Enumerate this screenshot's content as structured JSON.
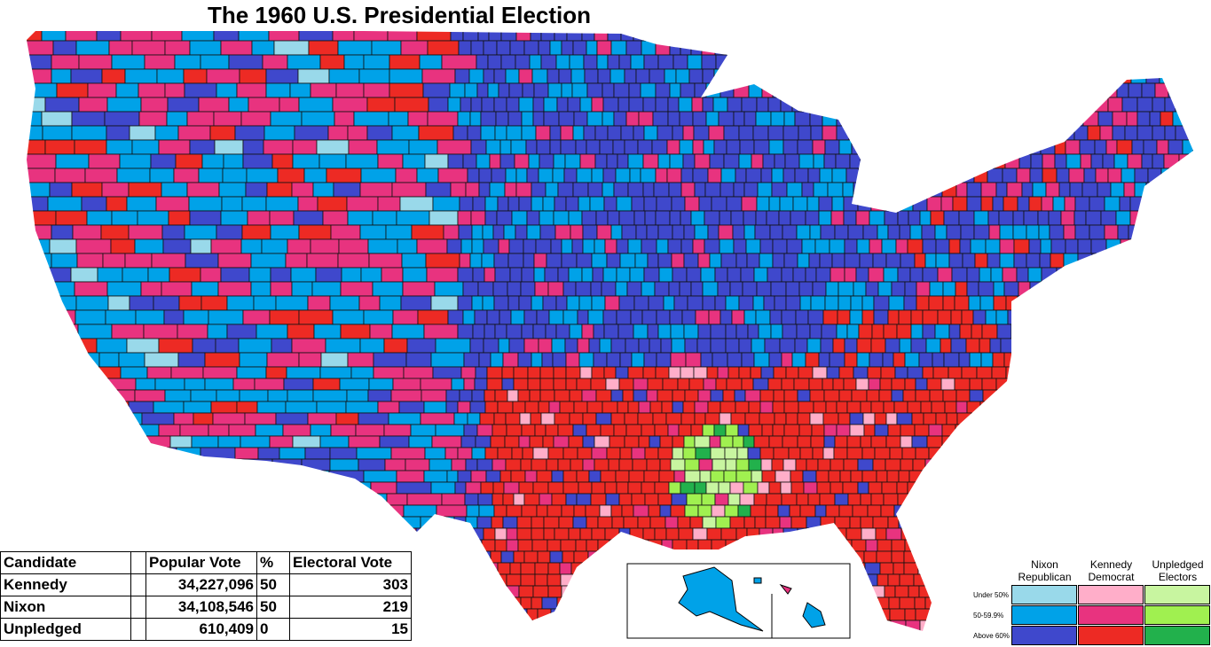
{
  "title": "The 1960 U.S. Presidential Election",
  "results_table": {
    "columns": [
      "Candidate",
      "Popular Vote",
      "%",
      "Electoral Vote"
    ],
    "rows": [
      [
        "Kennedy",
        "34,227,096",
        "50",
        "303"
      ],
      [
        "Nixon",
        "34,108,546",
        "50",
        "219"
      ],
      [
        "Unpledged",
        "610,409",
        "0",
        "15"
      ]
    ]
  },
  "legend": {
    "parties": [
      {
        "name": "Nixon Republican",
        "colors": [
          "#99d9ea",
          "#00a2e8",
          "#3f48cc"
        ]
      },
      {
        "name": "Kennedy Democrat",
        "colors": [
          "#ffaec9",
          "#e8337f",
          "#ed2a24"
        ]
      },
      {
        "name": "Unpledged Electors",
        "colors": [
          "#c8f5a0",
          "#a0f050",
          "#22b14c"
        ]
      }
    ],
    "levels": [
      "Under 50%",
      "50-59.9%",
      "Above 60%"
    ]
  }
}
